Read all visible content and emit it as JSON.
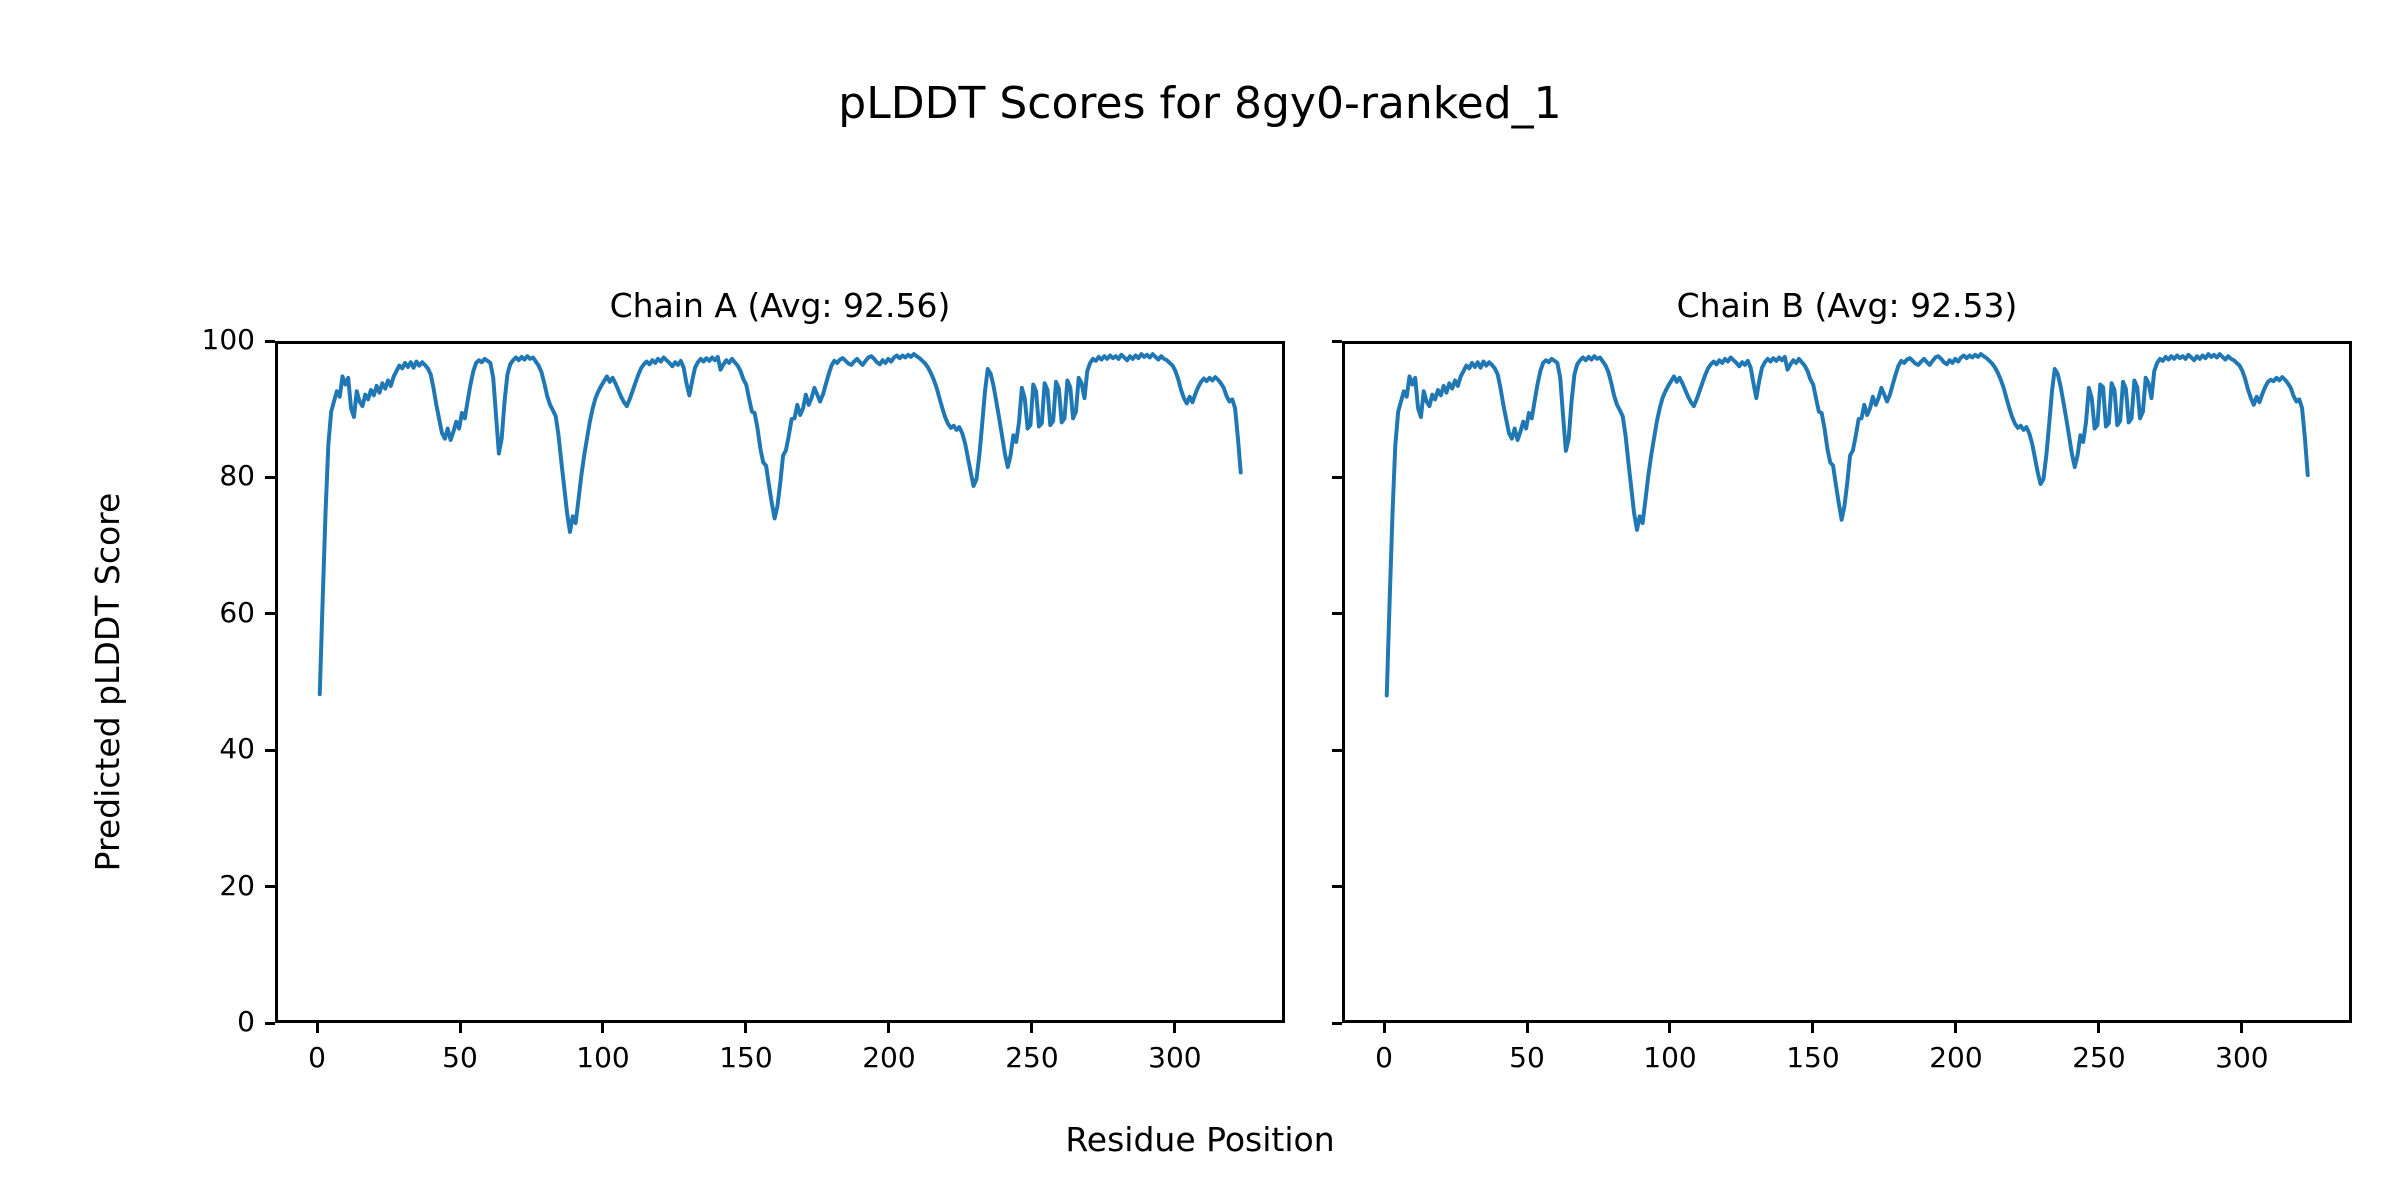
{
  "figure": {
    "suptitle": "pLDDT Scores for 8gy0-ranked_1"
  },
  "chart_data": {
    "type": "line",
    "title": "pLDDT Scores for 8gy0-ranked_1",
    "xlabel": "Residue Position",
    "ylabel": "Predicted pLDDT Score",
    "line_color": "#1f77b4",
    "grid": false,
    "legend": "none",
    "xlim": [
      -14.7,
      338.5
    ],
    "ylim": [
      0,
      100
    ],
    "xticks": [
      0,
      50,
      100,
      150,
      200,
      250,
      300
    ],
    "yticks": [
      0,
      20,
      40,
      60,
      80,
      100
    ],
    "x_start": 0,
    "x_step": 1,
    "subplots": [
      {
        "title": "Chain A (Avg: 92.56)",
        "chain": "A",
        "avg": 92.56,
        "values": [
          48.2,
          62,
          75,
          85,
          90,
          91.5,
          93,
          92.2,
          95.2,
          94,
          95,
          90.5,
          89.2,
          93,
          91.5,
          90.8,
          92.5,
          91.8,
          93.2,
          92.4,
          93.8,
          92.8,
          94.2,
          93.4,
          94.6,
          93.8,
          95.2,
          96,
          96.8,
          96.4,
          97.2,
          96.6,
          97.3,
          96.5,
          97.4,
          96.8,
          97.3,
          96.9,
          96.4,
          95.5,
          93.5,
          91,
          88.9,
          86.8,
          86,
          87.5,
          85.8,
          87,
          88.5,
          87.5,
          89.8,
          89,
          91.5,
          94,
          96,
          97.2,
          97.6,
          97.3,
          97.8,
          97.5,
          97.2,
          95,
          89.5,
          83.8,
          86,
          91.5,
          95.5,
          97,
          97.6,
          98,
          97.6,
          98.1,
          97.7,
          98.2,
          97.8,
          98,
          97.4,
          96.8,
          95.8,
          94.2,
          92.3,
          91,
          90.2,
          89.3,
          86.5,
          82.5,
          78.7,
          75,
          72.2,
          74.5,
          73.5,
          77,
          80.5,
          83.5,
          86,
          88.5,
          90.5,
          92,
          93,
          93.8,
          94.5,
          95.2,
          94.4,
          95,
          94.2,
          93.2,
          92.2,
          91.4,
          90.8,
          91.8,
          93,
          94.2,
          95.4,
          96.4,
          97,
          97.4,
          97,
          97.6,
          97.2,
          97.8,
          97.4,
          98,
          97.6,
          97.2,
          96.7,
          97.3,
          96.9,
          97.5,
          96.5,
          94.2,
          92.4,
          94.5,
          96.5,
          97.3,
          97.8,
          97.4,
          97.9,
          97.5,
          98,
          97.6,
          98.1,
          96.2,
          97,
          97.6,
          97.2,
          97.8,
          97.3,
          96.8,
          96,
          94.8,
          94,
          92,
          90,
          89.8,
          87.5,
          84.5,
          82.5,
          82,
          79.2,
          76.5,
          74.2,
          76,
          79.5,
          83.5,
          84.3,
          86.5,
          88.9,
          89,
          91,
          89.5,
          90.5,
          92.5,
          91,
          92,
          93.5,
          92.5,
          91.5,
          92.5,
          94,
          95.5,
          96.8,
          97.5,
          97.2,
          97.7,
          97.9,
          97.5,
          97.1,
          96.9,
          97.4,
          97.8,
          97.3,
          96.9,
          97.5,
          98,
          98.2,
          97.8,
          97.3,
          97,
          97.6,
          97.2,
          97.8,
          97.4,
          98,
          98.3,
          97.9,
          98.3,
          98,
          98.4,
          98.1,
          98.5,
          98.2,
          97.9,
          97.5,
          97.1,
          96.5,
          95.7,
          94.7,
          93.5,
          92,
          90.5,
          89.2,
          88.2,
          87.6,
          87.9,
          87.3,
          87.7,
          86.8,
          85.3,
          83.2,
          81,
          79,
          80,
          83.5,
          88,
          93,
          96.3,
          95.6,
          93.8,
          91.5,
          89,
          86.5,
          83.8,
          81.8,
          83.5,
          86.5,
          85.5,
          88.5,
          93.5,
          92,
          87.5,
          88,
          94,
          93,
          87.8,
          88.3,
          94.2,
          93.2,
          88,
          88.6,
          94.4,
          93.4,
          88.4,
          89,
          94.6,
          93.6,
          89,
          90,
          95,
          94.2,
          92,
          96,
          97.2,
          97.8,
          97.5,
          98.1,
          97.7,
          98.2,
          97.8,
          98.3,
          97.9,
          98.2,
          97.8,
          98.4,
          98,
          97.6,
          98.2,
          97.8,
          98.3,
          97.9,
          98.5,
          98.1,
          98.4,
          98,
          98.5,
          98.1,
          97.7,
          98.2,
          97.8,
          97.6,
          97.2,
          96.8,
          96,
          94.8,
          93.2,
          92,
          91.2,
          92.2,
          91.4,
          92.6,
          93.6,
          94.4,
          94.9,
          94.5,
          95,
          94.6,
          95.1,
          94.7,
          94.2,
          93.5,
          92.3,
          91.5,
          91.8,
          90.5,
          86,
          81
        ]
      },
      {
        "title": "Chain B (Avg: 92.53)",
        "chain": "B",
        "avg": 92.53,
        "values": [
          48,
          62,
          75,
          85,
          90,
          91.5,
          93,
          92.2,
          95.2,
          94,
          95,
          90.5,
          89.2,
          93,
          91.5,
          90.8,
          92.5,
          91.8,
          93.2,
          92.4,
          93.8,
          92.8,
          94.2,
          93.4,
          94.6,
          93.8,
          95.2,
          96,
          96.8,
          96.4,
          97.2,
          96.6,
          97.3,
          96.5,
          97.4,
          96.8,
          97.3,
          96.9,
          96.4,
          95.5,
          93.5,
          91,
          88.9,
          86.8,
          86,
          87.5,
          85.8,
          87,
          88.5,
          87.5,
          89.8,
          89,
          91.5,
          94,
          96,
          97.2,
          97.6,
          97.3,
          97.8,
          97.5,
          97.2,
          95,
          89.5,
          84.2,
          86,
          91.5,
          95.5,
          97,
          97.6,
          98,
          97.6,
          98.1,
          97.7,
          98.2,
          97.8,
          98,
          97.4,
          96.8,
          95.8,
          94.2,
          92.3,
          91,
          90.2,
          89.3,
          86.5,
          82.5,
          78.7,
          75,
          72.5,
          74.5,
          73.5,
          77,
          80.5,
          83.5,
          86,
          88.5,
          90.5,
          92,
          93,
          93.8,
          94.5,
          95.2,
          94.4,
          95,
          94.2,
          93.2,
          92.2,
          91.4,
          90.8,
          91.8,
          93,
          94.2,
          95.4,
          96.4,
          97,
          97.4,
          97,
          97.6,
          97.2,
          97.8,
          97.4,
          98,
          97.6,
          97.2,
          96.7,
          97.3,
          96.9,
          97.5,
          96.5,
          94.2,
          92,
          94.5,
          96.5,
          97.3,
          97.8,
          97.4,
          97.9,
          97.5,
          98,
          97.6,
          98.1,
          96.2,
          97,
          97.6,
          97.2,
          97.8,
          97.3,
          96.8,
          96,
          94.8,
          94,
          92,
          90,
          89.8,
          87.5,
          84.5,
          82.5,
          82,
          79.2,
          76.5,
          74,
          76,
          79.5,
          83.5,
          84.3,
          86.5,
          88.9,
          89,
          91,
          89.5,
          90.5,
          92.2,
          91,
          92,
          93.5,
          92.5,
          91.5,
          92.5,
          94,
          95.5,
          96.8,
          97.5,
          97.2,
          97.7,
          97.9,
          97.5,
          97.1,
          96.9,
          97.4,
          97.8,
          97.3,
          96.9,
          97.5,
          98,
          98.2,
          97.8,
          97.3,
          97,
          97.6,
          97.2,
          97.8,
          97.4,
          98,
          98.3,
          97.9,
          98.3,
          98,
          98.4,
          98.1,
          98.5,
          98.2,
          97.9,
          97.5,
          97.1,
          96.5,
          95.7,
          94.7,
          93.5,
          92,
          90.5,
          89.2,
          88.2,
          87.6,
          87.9,
          87.3,
          87.7,
          86.8,
          85.3,
          83.2,
          81,
          79.3,
          80,
          83.5,
          88,
          93,
          96.3,
          95.6,
          93.8,
          91.5,
          89,
          86.5,
          83.8,
          81.8,
          83.5,
          86.5,
          85.5,
          88.5,
          93.5,
          92,
          87.5,
          88,
          94,
          93.6,
          87.8,
          88.3,
          94.2,
          93.2,
          88,
          88.6,
          94.4,
          93.4,
          88.4,
          89,
          94.6,
          93.6,
          89,
          90,
          95,
          94.2,
          92,
          96,
          97.2,
          97.8,
          97.5,
          98.1,
          97.7,
          98.2,
          97.8,
          98.3,
          97.9,
          98.2,
          97.8,
          98.4,
          98,
          97.6,
          98.2,
          97.8,
          98.3,
          97.9,
          98.5,
          98.1,
          98.4,
          98,
          98.5,
          98.1,
          97.7,
          98.2,
          97.8,
          97.6,
          97.2,
          96.8,
          96,
          94.8,
          93.2,
          92,
          91,
          92.2,
          91.4,
          92.6,
          93.6,
          94.4,
          94.7,
          94.5,
          95,
          94.6,
          95.1,
          94.7,
          94.2,
          93.5,
          92.3,
          91.5,
          91.8,
          90.5,
          86,
          80.6
        ]
      }
    ]
  }
}
